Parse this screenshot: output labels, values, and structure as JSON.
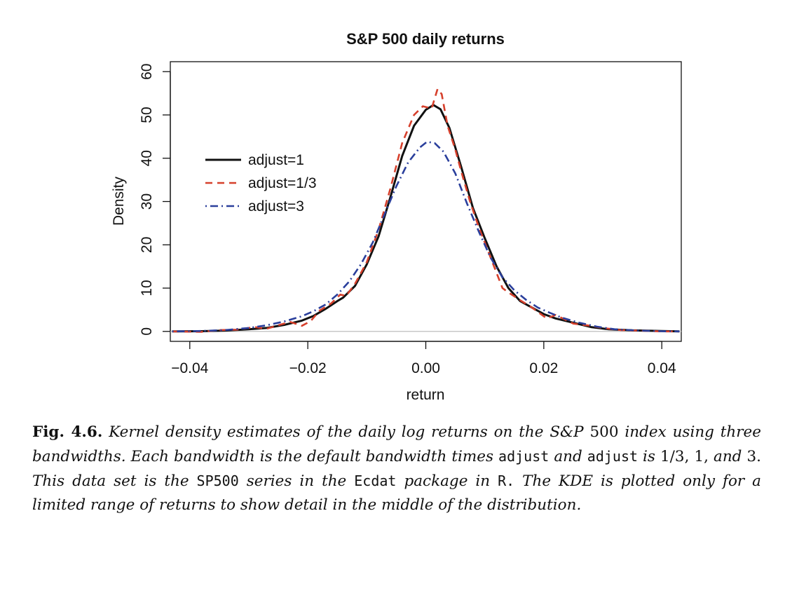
{
  "chart_data": {
    "type": "line",
    "title": "S&P 500 daily returns",
    "xlabel": "return",
    "ylabel": "Density",
    "xlim": [
      -0.0433,
      0.0433
    ],
    "ylim": [
      -2.3,
      62.3
    ],
    "x_ticks": [
      -0.04,
      -0.02,
      0.0,
      0.02,
      0.04
    ],
    "x_tick_labels": [
      "−0.04",
      "−0.02",
      "0.00",
      "0.02",
      "0.04"
    ],
    "y_ticks": [
      0,
      10,
      20,
      30,
      40,
      50,
      60
    ],
    "y_tick_labels": [
      "0",
      "10",
      "20",
      "30",
      "40",
      "50",
      "60"
    ],
    "zero_line": true,
    "legend_position": "upper-left",
    "series": [
      {
        "name": "adjust=1",
        "color": "#111111",
        "style": "solid",
        "points": [
          [
            -0.043,
            0.0
          ],
          [
            -0.038,
            0.05
          ],
          [
            -0.034,
            0.2
          ],
          [
            -0.03,
            0.5
          ],
          [
            -0.027,
            0.8
          ],
          [
            -0.024,
            1.5
          ],
          [
            -0.021,
            2.5
          ],
          [
            -0.019,
            3.6
          ],
          [
            -0.017,
            5.2
          ],
          [
            -0.015,
            7.0
          ],
          [
            -0.014,
            7.8
          ],
          [
            -0.012,
            10.5
          ],
          [
            -0.01,
            15.5
          ],
          [
            -0.008,
            22.0
          ],
          [
            -0.006,
            31.0
          ],
          [
            -0.004,
            40.5
          ],
          [
            -0.002,
            47.5
          ],
          [
            0.0,
            51.2
          ],
          [
            0.0013,
            52.3
          ],
          [
            0.0025,
            51.3
          ],
          [
            0.004,
            47.0
          ],
          [
            0.006,
            38.0
          ],
          [
            0.008,
            28.5
          ],
          [
            0.01,
            21.5
          ],
          [
            0.012,
            15.0
          ],
          [
            0.014,
            10.0
          ],
          [
            0.016,
            7.0
          ],
          [
            0.018,
            5.5
          ],
          [
            0.02,
            4.0
          ],
          [
            0.022,
            3.0
          ],
          [
            0.025,
            2.0
          ],
          [
            0.028,
            1.0
          ],
          [
            0.031,
            0.5
          ],
          [
            0.035,
            0.25
          ],
          [
            0.04,
            0.1
          ],
          [
            0.043,
            0.0
          ]
        ]
      },
      {
        "name": "adjust=1/3",
        "color": "#d6402c",
        "style": "dashed",
        "points": [
          [
            -0.043,
            0.0
          ],
          [
            -0.038,
            -0.1
          ],
          [
            -0.035,
            0.3
          ],
          [
            -0.032,
            0.4
          ],
          [
            -0.029,
            1.0
          ],
          [
            -0.027,
            0.6
          ],
          [
            -0.025,
            1.4
          ],
          [
            -0.023,
            2.2
          ],
          [
            -0.021,
            1.3
          ],
          [
            -0.0195,
            2.4
          ],
          [
            -0.018,
            4.8
          ],
          [
            -0.016,
            6.5
          ],
          [
            -0.0145,
            8.5
          ],
          [
            -0.0135,
            8.2
          ],
          [
            -0.012,
            11.0
          ],
          [
            -0.01,
            16.0
          ],
          [
            -0.008,
            23.5
          ],
          [
            -0.006,
            33.0
          ],
          [
            -0.004,
            43.5
          ],
          [
            -0.002,
            50.0
          ],
          [
            -0.0005,
            52.0
          ],
          [
            0.001,
            51.5
          ],
          [
            0.002,
            56.0
          ],
          [
            0.0027,
            54.8
          ],
          [
            0.0037,
            47.5
          ],
          [
            0.005,
            42.0
          ],
          [
            0.006,
            37.0
          ],
          [
            0.0075,
            30.0
          ],
          [
            0.009,
            24.0
          ],
          [
            0.011,
            17.0
          ],
          [
            0.013,
            10.0
          ],
          [
            0.014,
            9.0
          ],
          [
            0.016,
            7.2
          ],
          [
            0.018,
            5.5
          ],
          [
            0.0205,
            3.0
          ],
          [
            0.022,
            3.8
          ],
          [
            0.025,
            1.8
          ],
          [
            0.028,
            1.3
          ],
          [
            0.03,
            0.8
          ],
          [
            0.033,
            0.3
          ],
          [
            0.036,
            0.2
          ],
          [
            0.04,
            0.0
          ],
          [
            0.043,
            0.0
          ]
        ]
      },
      {
        "name": "adjust=3",
        "color": "#2a3f9c",
        "style": "dashdot",
        "points": [
          [
            -0.043,
            0.0
          ],
          [
            -0.038,
            0.1
          ],
          [
            -0.034,
            0.3
          ],
          [
            -0.03,
            0.8
          ],
          [
            -0.027,
            1.4
          ],
          [
            -0.024,
            2.3
          ],
          [
            -0.021,
            3.5
          ],
          [
            -0.019,
            4.7
          ],
          [
            -0.017,
            6.2
          ],
          [
            -0.015,
            8.5
          ],
          [
            -0.013,
            11.5
          ],
          [
            -0.011,
            15.5
          ],
          [
            -0.009,
            20.5
          ],
          [
            -0.007,
            27.0
          ],
          [
            -0.005,
            33.5
          ],
          [
            -0.003,
            39.0
          ],
          [
            -0.001,
            42.5
          ],
          [
            0.0002,
            43.8
          ],
          [
            0.0015,
            43.5
          ],
          [
            0.003,
            41.5
          ],
          [
            0.005,
            36.5
          ],
          [
            0.007,
            29.5
          ],
          [
            0.009,
            23.0
          ],
          [
            0.011,
            17.0
          ],
          [
            0.013,
            12.5
          ],
          [
            0.015,
            9.5
          ],
          [
            0.017,
            7.3
          ],
          [
            0.019,
            5.5
          ],
          [
            0.021,
            4.3
          ],
          [
            0.023,
            3.2
          ],
          [
            0.026,
            2.0
          ],
          [
            0.029,
            1.1
          ],
          [
            0.032,
            0.5
          ],
          [
            0.036,
            0.2
          ],
          [
            0.04,
            0.05
          ],
          [
            0.043,
            0.0
          ]
        ]
      }
    ]
  },
  "caption": {
    "label": "Fig. 4.6.",
    "p1": " Kernel density estimates of the daily log returns on the ",
    "sp": "S&P",
    "p2": " 500 ",
    "p3": "index using three bandwidths. Each bandwidth is the default bandwidth times ",
    "code1": "adjust",
    "p4": " and ",
    "code2": "adjust",
    "p5": " is ",
    "vals": "1/3, 1,",
    "p6": " and ",
    "three": "3.",
    "p7": " This data set is the ",
    "code3": "SP500",
    "p8": " series in the ",
    "code4": "Ecdat",
    "p9": " package in ",
    "code5": "R.",
    "p10": " The KDE is plotted only for a limited range of returns to show detail in the middle of the distribution."
  }
}
